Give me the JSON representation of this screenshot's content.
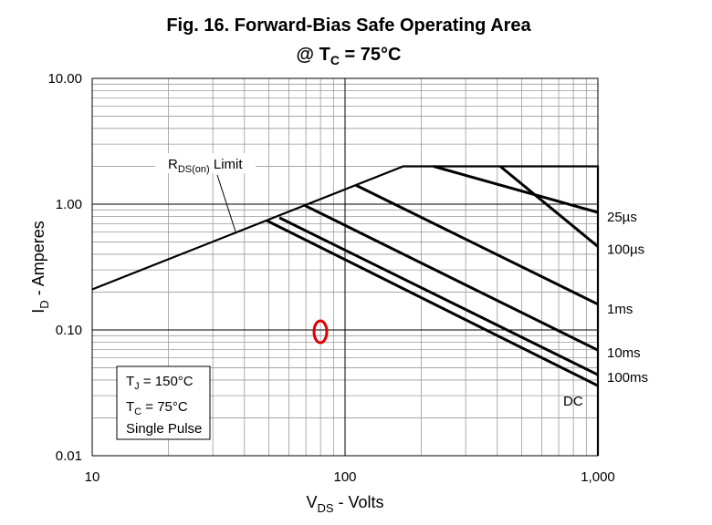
{
  "chart_data": {
    "type": "line",
    "title": "Fig. 16. Forward-Bias Safe Operating Area",
    "subtitle": [
      "@ T",
      "C",
      " = 75°C"
    ],
    "x_label": [
      "V",
      "DS",
      " - Volts"
    ],
    "y_label": [
      "I",
      "D",
      " - Amperes"
    ],
    "xscale": "log",
    "yscale": "log",
    "xlim": [
      10,
      1000
    ],
    "ylim": [
      0.01,
      10
    ],
    "xticks": [
      10,
      100,
      {
        "value": 1000,
        "label": "1,000"
      }
    ],
    "yticks": [
      {
        "value": 0.01,
        "label": "0.01"
      },
      {
        "value": 0.1,
        "label": "0.10"
      },
      {
        "value": 1,
        "label": "1.00"
      },
      {
        "value": 10,
        "label": "10.00"
      }
    ],
    "grid": true,
    "series": [
      {
        "color": "#000000",
        "x": [
          10,
          170,
          1000,
          1000
        ],
        "values": [
          0.21,
          2,
          2,
          0.01
        ]
      },
      {
        "name": "25µs",
        "color": "#000000",
        "x": [
          224,
          1000
        ],
        "values": [
          2,
          0.86
        ]
      },
      {
        "name": "100µs",
        "color": "#000000",
        "x": [
          411,
          1000
        ],
        "values": [
          2,
          0.46
        ]
      },
      {
        "name": "1ms",
        "color": "#000000",
        "x": [
          110,
          1000
        ],
        "values": [
          1.42,
          0.16
        ]
      },
      {
        "name": "10ms",
        "color": "#000000",
        "x": [
          69,
          1000
        ],
        "values": [
          0.98,
          0.069
        ]
      },
      {
        "name": "100ms",
        "color": "#000000",
        "x": [
          55,
          1000
        ],
        "values": [
          0.78,
          0.044
        ]
      },
      {
        "name": "DC",
        "color": "#000000",
        "x": [
          49,
          1000
        ],
        "values": [
          0.74,
          0.036
        ]
      }
    ],
    "annotation": [
      "R",
      "DS(on)",
      " Limit"
    ],
    "notes": [
      [
        "T",
        "J",
        " = 150°C"
      ],
      [
        "T",
        "C",
        " = 75°C"
      ],
      [
        "Single Pulse"
      ]
    ]
  }
}
